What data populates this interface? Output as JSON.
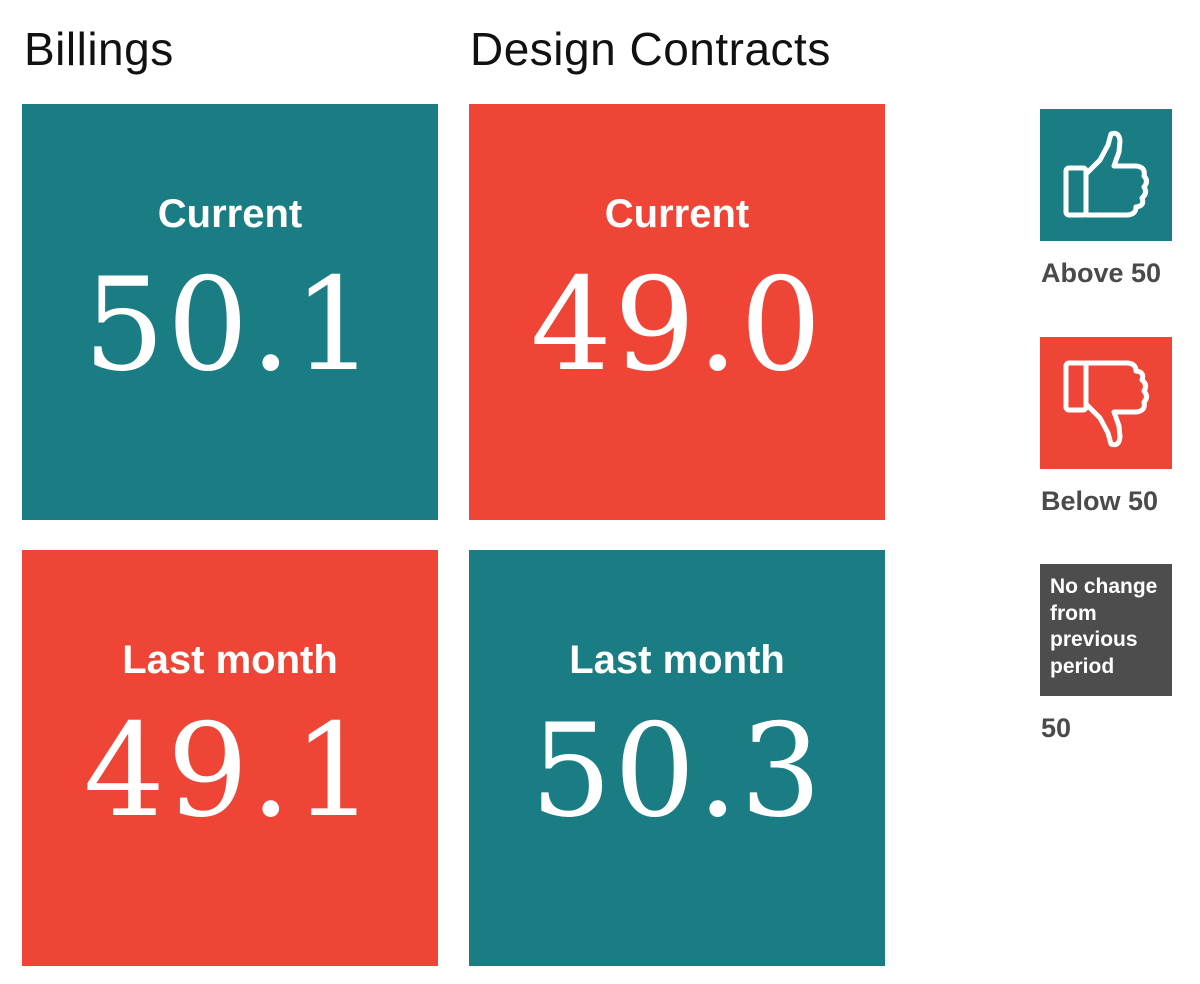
{
  "colors": {
    "above": "#1b7d84",
    "below": "#ee4536",
    "no_change": "#4d4d4d",
    "caption": "#4a4a4a"
  },
  "chart_data": {
    "type": "table",
    "columns": [
      {
        "title": "Billings",
        "tiles": [
          {
            "label": "Current",
            "value": "50.1",
            "status": "above"
          },
          {
            "label": "Last month",
            "value": "49.1",
            "status": "below"
          }
        ]
      },
      {
        "title": "Design Contracts",
        "tiles": [
          {
            "label": "Current",
            "value": "49.0",
            "status": "below"
          },
          {
            "label": "Last month",
            "value": "50.3",
            "status": "above"
          }
        ]
      }
    ]
  },
  "legend": {
    "above": {
      "icon": "thumbs-up-icon",
      "caption": "Above 50"
    },
    "below": {
      "icon": "thumbs-down-icon",
      "caption": "Below 50"
    },
    "no_change": {
      "text": "No change from previous period",
      "caption": "50"
    }
  }
}
